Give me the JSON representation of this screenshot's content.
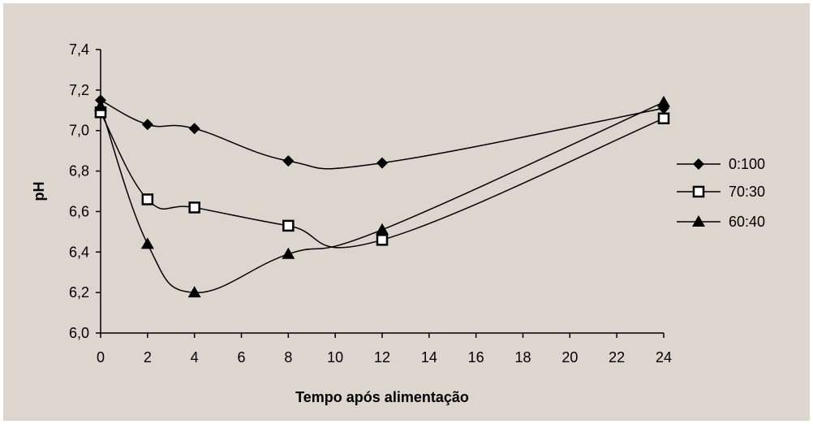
{
  "chart_data": {
    "type": "line",
    "xlabel": "Tempo após alimentação",
    "ylabel": "pH",
    "x_ticks": [
      "0",
      "2",
      "4",
      "6",
      "8",
      "10",
      "12",
      "14",
      "16",
      "18",
      "20",
      "22",
      "24"
    ],
    "y_ticks": [
      "6,0",
      "6,2",
      "6,4",
      "6,6",
      "6,8",
      "7,0",
      "7,2",
      "7,4"
    ],
    "ylim": [
      6.0,
      7.4
    ],
    "x_categories_count": 13,
    "grid": false,
    "legend_position": "right",
    "series": [
      {
        "name": "0:100",
        "marker": "diamond",
        "x": [
          0,
          2,
          4,
          8,
          12,
          24
        ],
        "values": [
          7.15,
          7.03,
          7.01,
          6.85,
          6.84,
          7.11
        ]
      },
      {
        "name": "70:30",
        "marker": "square",
        "x": [
          0,
          2,
          4,
          8,
          12,
          24
        ],
        "values": [
          7.09,
          6.66,
          6.62,
          6.53,
          6.46,
          7.06
        ]
      },
      {
        "name": "60:40",
        "marker": "triangle",
        "x": [
          0,
          2,
          4,
          8,
          12,
          24
        ],
        "values": [
          7.12,
          6.44,
          6.2,
          6.39,
          6.51,
          7.14
        ]
      }
    ],
    "colors": {
      "background": "#DCD6CF",
      "line": "#000000"
    }
  }
}
